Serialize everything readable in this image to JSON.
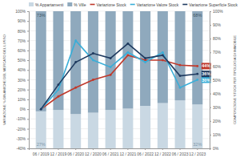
{
  "chart_data": {
    "type": "bar",
    "y_label": "VARIAZIONE % DINAMICHE DEL MERCATO DEL LUSSO",
    "y2_label": "COMPOSIZIONE STOCK PER TIPOLOGIA DI IMMOBILE",
    "categories": [
      "06 / 2019",
      "12 / 2019",
      "06 / 2020",
      "12 / 2020",
      "06 / 2021",
      "12 / 2021",
      "06 / 2022",
      "12 / 2022",
      "06 / 2023",
      "12 / 2023"
    ],
    "stacked": true,
    "grid": true,
    "legend": "top",
    "ylim": [
      -40,
      100
    ],
    "yticks": [
      {
        "value": -40,
        "label": "-40%"
      },
      {
        "value": -30,
        "label": "-30%"
      },
      {
        "value": -20,
        "label": "-20%"
      },
      {
        "value": -10,
        "label": "-10%"
      },
      {
        "value": 0,
        "label": "0%"
      },
      {
        "value": 10,
        "label": "10%"
      },
      {
        "value": 20,
        "label": "20%"
      },
      {
        "value": 30,
        "label": "30%"
      },
      {
        "value": 40,
        "label": "40%"
      },
      {
        "value": 50,
        "label": "50%"
      },
      {
        "value": 60,
        "label": "60%"
      },
      {
        "value": 70,
        "label": "70%"
      },
      {
        "value": 80,
        "label": "80%"
      },
      {
        "value": 90,
        "label": "90%"
      },
      {
        "value": 100,
        "label": "100%"
      }
    ],
    "y2lim": [
      0,
      100
    ],
    "y2ticks": [
      {
        "value": 0,
        "label": "0%"
      },
      {
        "value": 10,
        "label": "10%"
      },
      {
        "value": 20,
        "label": "20%"
      },
      {
        "value": 30,
        "label": "30%"
      },
      {
        "value": 40,
        "label": "40%"
      },
      {
        "value": 50,
        "label": "50%"
      },
      {
        "value": 60,
        "label": "60%"
      },
      {
        "value": 70,
        "label": "70%"
      },
      {
        "value": 80,
        "label": "80%"
      },
      {
        "value": 90,
        "label": "90%"
      },
      {
        "value": 100,
        "label": "100%"
      }
    ],
    "series": [
      {
        "name": "% Appartamenti",
        "type": "bar",
        "axis": "y2",
        "color": "#c9d8e3",
        "values": [
          27,
          28,
          25,
          26,
          28,
          29,
          31,
          33,
          35,
          32
        ],
        "value_labels": [
          "27%",
          null,
          null,
          null,
          null,
          null,
          null,
          null,
          null,
          "32%"
        ]
      },
      {
        "name": "% Ville",
        "type": "bar",
        "axis": "y2",
        "color": "#8fa9bd",
        "values": [
          73,
          72,
          75,
          74,
          72,
          71,
          69,
          67,
          65,
          68
        ],
        "value_labels": [
          "73%",
          null,
          null,
          null,
          null,
          null,
          null,
          null,
          null,
          "68%"
        ]
      },
      {
        "name": "Variazione Stock",
        "type": "line",
        "color": "#c0392b",
        "marker": "circle",
        "values": [
          0,
          13,
          22,
          30,
          35,
          55,
          50,
          50,
          45,
          44
        ],
        "value_labels": [
          null,
          null,
          null,
          null,
          null,
          null,
          null,
          null,
          null,
          "44%"
        ]
      },
      {
        "name": "Variazione Valore Stock",
        "type": "line",
        "color": "#3aaed8",
        "marker": "circle",
        "values": [
          0,
          20,
          70,
          50,
          43,
          58,
          48,
          58,
          22,
          30
        ],
        "value_labels": [
          null,
          null,
          null,
          null,
          null,
          null,
          null,
          null,
          null,
          "30%"
        ]
      },
      {
        "name": "Variazione Superficie Stock",
        "type": "line",
        "color": "#1f3a5f",
        "marker": "circle",
        "values": [
          0,
          25,
          48,
          57,
          52,
          67,
          52,
          55,
          34,
          36
        ],
        "value_labels": [
          null,
          null,
          null,
          null,
          null,
          null,
          null,
          null,
          null,
          "36%"
        ]
      }
    ]
  }
}
